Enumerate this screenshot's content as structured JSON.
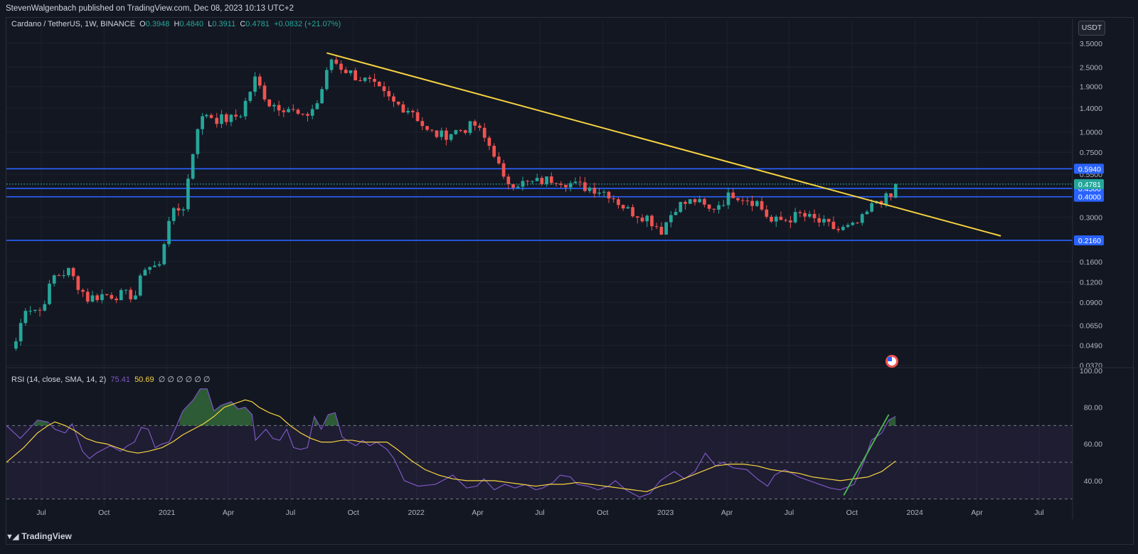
{
  "header": {
    "publisher_text": "StevenWalgenbach published on TradingView.com, Dec 08, 2023 10:13 UTC+2"
  },
  "legend": {
    "symbol": "Cardano / TetherUS, 1W, BINANCE",
    "o_label": "O",
    "o_value": "0.3948",
    "h_label": "H",
    "h_value": "0.4840",
    "l_label": "L",
    "l_value": "0.3911",
    "c_label": "C",
    "c_value": "0.4781",
    "change": "+0.0832 (+21.07%)"
  },
  "rsi_legend": {
    "label": "RSI (14, close, SMA, 14, 2)",
    "rsi_value": "75.41",
    "sma_value": "50.69",
    "extra": "∅ ∅ ∅ ∅ ∅ ∅"
  },
  "currency_button": "USDT",
  "brand": "TradingView",
  "colors": {
    "up": "#26a69a",
    "down": "#ef5350",
    "trendline": "#f7d341",
    "levels": "#2962ff",
    "rsi": "#7e57c2",
    "rsi_ma": "#f7d341",
    "rsi_trend": "#4caf50",
    "background": "#131722"
  },
  "chart_data": [
    {
      "type": "candlestick",
      "scale": "log",
      "ylim": [
        0.034,
        3.9
      ],
      "price_ticks": [
        "3.5000",
        "2.5000",
        "1.9000",
        "1.4000",
        "1.0000",
        "0.7500",
        "0.5500",
        "0.3000",
        "0.1600",
        "0.1200",
        "0.0900",
        "0.0650",
        "0.0490",
        "0.0370"
      ],
      "x_labels": [
        "Jul",
        "Oct",
        "2021",
        "Apr",
        "Jul",
        "Oct",
        "2022",
        "Apr",
        "Jul",
        "Oct",
        "2023",
        "Apr",
        "Jul",
        "Oct",
        "2024",
        "Apr",
        "Jul"
      ],
      "horizontal_levels": [
        0.594,
        0.478,
        0.45,
        0.4,
        0.216
      ],
      "level_labels": [
        "0.5940",
        "0.4500",
        "0.4000",
        "0.2160"
      ],
      "last_price_label": "0.4781",
      "trendline": {
        "from": [
          "2021-08-23",
          3.05
        ],
        "to": [
          "2024-05-06",
          0.23
        ]
      },
      "anchors": [
        [
          "2020-05-25",
          0.052
        ],
        [
          "2020-06-08",
          0.085
        ],
        [
          "2020-06-29",
          0.08
        ],
        [
          "2020-07-20",
          0.13
        ],
        [
          "2020-08-10",
          0.14
        ],
        [
          "2020-08-24",
          0.115
        ],
        [
          "2020-09-07",
          0.095
        ],
        [
          "2020-09-28",
          0.1
        ],
        [
          "2020-10-26",
          0.1
        ],
        [
          "2020-11-16",
          0.1
        ],
        [
          "2020-11-30",
          0.15
        ],
        [
          "2020-12-21",
          0.15
        ],
        [
          "2021-01-04",
          0.3
        ],
        [
          "2021-01-25",
          0.35
        ],
        [
          "2021-02-15",
          1.1
        ],
        [
          "2021-02-28",
          1.3
        ],
        [
          "2021-03-15",
          1.2
        ],
        [
          "2021-04-05",
          1.2
        ],
        [
          "2021-04-19",
          1.3
        ],
        [
          "2021-05-10",
          2.1
        ],
        [
          "2021-05-31",
          1.5
        ],
        [
          "2021-06-28",
          1.4
        ],
        [
          "2021-07-19",
          1.2
        ],
        [
          "2021-08-09",
          1.5
        ],
        [
          "2021-08-30",
          2.8
        ],
        [
          "2021-09-13",
          2.5
        ],
        [
          "2021-10-04",
          2.2
        ],
        [
          "2021-10-25",
          2.0
        ],
        [
          "2021-11-29",
          1.5
        ],
        [
          "2021-12-27",
          1.35
        ],
        [
          "2022-01-17",
          1.0
        ],
        [
          "2022-02-07",
          0.95
        ],
        [
          "2022-03-28",
          1.1
        ],
        [
          "2022-04-25",
          0.75
        ],
        [
          "2022-05-09",
          0.5
        ],
        [
          "2022-06-13",
          0.48
        ],
        [
          "2022-07-25",
          0.52
        ],
        [
          "2022-08-22",
          0.47
        ],
        [
          "2022-09-19",
          0.45
        ],
        [
          "2022-10-10",
          0.42
        ],
        [
          "2022-11-07",
          0.33
        ],
        [
          "2022-12-05",
          0.3
        ],
        [
          "2022-12-26",
          0.25
        ],
        [
          "2023-01-16",
          0.35
        ],
        [
          "2023-02-13",
          0.38
        ],
        [
          "2023-03-06",
          0.33
        ],
        [
          "2023-04-10",
          0.42
        ],
        [
          "2023-05-15",
          0.37
        ],
        [
          "2023-06-05",
          0.28
        ],
        [
          "2023-06-26",
          0.29
        ],
        [
          "2023-07-17",
          0.31
        ],
        [
          "2023-08-14",
          0.28
        ],
        [
          "2023-09-11",
          0.25
        ],
        [
          "2023-10-02",
          0.26
        ],
        [
          "2023-10-16",
          0.29
        ],
        [
          "2023-11-06",
          0.38
        ],
        [
          "2023-11-27",
          0.3948
        ],
        [
          "2023-12-04",
          0.4781
        ]
      ],
      "last_candle": {
        "date": "2023-12-04",
        "open": 0.3948,
        "high": 0.484,
        "low": 0.3911,
        "close": 0.4781
      }
    },
    {
      "type": "line",
      "title": "RSI (14, close, SMA, 14, 2)",
      "ylim": [
        26,
        100
      ],
      "y_ticks": [
        "100.00",
        "80.00",
        "60.00",
        "40.00"
      ],
      "bands": [
        70,
        50,
        30
      ],
      "series": [
        {
          "anchors": [
            [
              0,
              70
            ],
            [
              4,
              63
            ],
            [
              9,
              73
            ],
            [
              12,
              72
            ],
            [
              14,
              68
            ],
            [
              17,
              66
            ],
            [
              19,
              71
            ],
            [
              22,
              56
            ],
            [
              24,
              52
            ],
            [
              26,
              55
            ],
            [
              28,
              57
            ],
            [
              30,
              59
            ],
            [
              33,
              56
            ],
            [
              35,
              59
            ],
            [
              37,
              61
            ],
            [
              39,
              69
            ],
            [
              41,
              68
            ],
            [
              43,
              58
            ],
            [
              45,
              60
            ],
            [
              47,
              61
            ],
            [
              49,
              69
            ],
            [
              51,
              78
            ],
            [
              54,
              84
            ],
            [
              56,
              90
            ],
            [
              58,
              90
            ],
            [
              60,
              78
            ],
            [
              62,
              81
            ],
            [
              65,
              83
            ],
            [
              67,
              79
            ],
            [
              69,
              80
            ],
            [
              71,
              76
            ],
            [
              72,
              62
            ],
            [
              75,
              68
            ],
            [
              77,
              63
            ],
            [
              79,
              62
            ],
            [
              81,
              68
            ],
            [
              83,
              58
            ],
            [
              85,
              57
            ],
            [
              87,
              58
            ],
            [
              89,
              75
            ],
            [
              91,
              68
            ],
            [
              93,
              76
            ],
            [
              95,
              77
            ],
            [
              97,
              64
            ],
            [
              99,
              61
            ],
            [
              101,
              59
            ],
            [
              103,
              62
            ],
            [
              105,
              59
            ],
            [
              107,
              61
            ],
            [
              110,
              57
            ],
            [
              112,
              52
            ],
            [
              115,
              40
            ],
            [
              119,
              37
            ],
            [
              124,
              38
            ],
            [
              129,
              43
            ],
            [
              133,
              36
            ],
            [
              136,
              37
            ],
            [
              138,
              41
            ],
            [
              141,
              35
            ],
            [
              144,
              38
            ],
            [
              147,
              36
            ],
            [
              150,
              38
            ],
            [
              153,
              35
            ],
            [
              155,
              36
            ],
            [
              158,
              39
            ],
            [
              160,
              43
            ],
            [
              163,
              42
            ],
            [
              165,
              38
            ],
            [
              168,
              37
            ],
            [
              171,
              35
            ],
            [
              174,
              37
            ],
            [
              176,
              40
            ],
            [
              179,
              35
            ],
            [
              183,
              31
            ],
            [
              186,
              33
            ],
            [
              189,
              40
            ],
            [
              193,
              45
            ],
            [
              196,
              41
            ],
            [
              199,
              45
            ],
            [
              202,
              55
            ],
            [
              205,
              48
            ],
            [
              207,
              50
            ],
            [
              210,
              47
            ],
            [
              214,
              46
            ],
            [
              217,
              41
            ],
            [
              220,
              37
            ],
            [
              222,
              43
            ],
            [
              225,
              46
            ],
            [
              229,
              42
            ],
            [
              232,
              40
            ],
            [
              235,
              38
            ],
            [
              238,
              36
            ],
            [
              241,
              35
            ],
            [
              245,
              38
            ],
            [
              248,
              51
            ],
            [
              250,
              62
            ],
            [
              253,
              66
            ],
            [
              255,
              73
            ],
            [
              257,
              75
            ]
          ]
        },
        {
          "anchors": [
            [
              0,
              50
            ],
            [
              5,
              58
            ],
            [
              9,
              66
            ],
            [
              12,
              70
            ],
            [
              14,
              72
            ],
            [
              17,
              70
            ],
            [
              20,
              67
            ],
            [
              23,
              63
            ],
            [
              26,
              61
            ],
            [
              29,
              60
            ],
            [
              32,
              58
            ],
            [
              35,
              56
            ],
            [
              38,
              55
            ],
            [
              41,
              56
            ],
            [
              45,
              58
            ],
            [
              48,
              61
            ],
            [
              51,
              65
            ],
            [
              54,
              68
            ],
            [
              57,
              71
            ],
            [
              60,
              75
            ],
            [
              63,
              80
            ],
            [
              66,
              82
            ],
            [
              69,
              84
            ],
            [
              71,
              83
            ],
            [
              73,
              80
            ],
            [
              76,
              77
            ],
            [
              79,
              75
            ],
            [
              82,
              70
            ],
            [
              85,
              66
            ],
            [
              88,
              63
            ],
            [
              91,
              61
            ],
            [
              94,
              61
            ],
            [
              97,
              62
            ],
            [
              100,
              62
            ],
            [
              103,
              61
            ],
            [
              106,
              61
            ],
            [
              110,
              61
            ],
            [
              113,
              57
            ],
            [
              117,
              51
            ],
            [
              121,
              46
            ],
            [
              125,
              43
            ],
            [
              129,
              41
            ],
            [
              133,
              40
            ],
            [
              137,
              40
            ],
            [
              141,
              40
            ],
            [
              145,
              39
            ],
            [
              149,
              38
            ],
            [
              153,
              37
            ],
            [
              157,
              38
            ],
            [
              161,
              38
            ],
            [
              165,
              39
            ],
            [
              169,
              38
            ],
            [
              173,
              37
            ],
            [
              177,
              36
            ],
            [
              181,
              35
            ],
            [
              185,
              34
            ],
            [
              189,
              37
            ],
            [
              193,
              39
            ],
            [
              197,
              42
            ],
            [
              201,
              45
            ],
            [
              205,
              48
            ],
            [
              209,
              49
            ],
            [
              213,
              49
            ],
            [
              217,
              48
            ],
            [
              221,
              46
            ],
            [
              225,
              45
            ],
            [
              229,
              44
            ],
            [
              233,
              42
            ],
            [
              237,
              41
            ],
            [
              241,
              40
            ],
            [
              245,
              41
            ],
            [
              249,
              42
            ],
            [
              253,
              45
            ],
            [
              257,
              50.69
            ]
          ]
        }
      ],
      "trend_segment": [
        [
          242,
          32
        ],
        [
          255,
          76
        ]
      ]
    }
  ]
}
